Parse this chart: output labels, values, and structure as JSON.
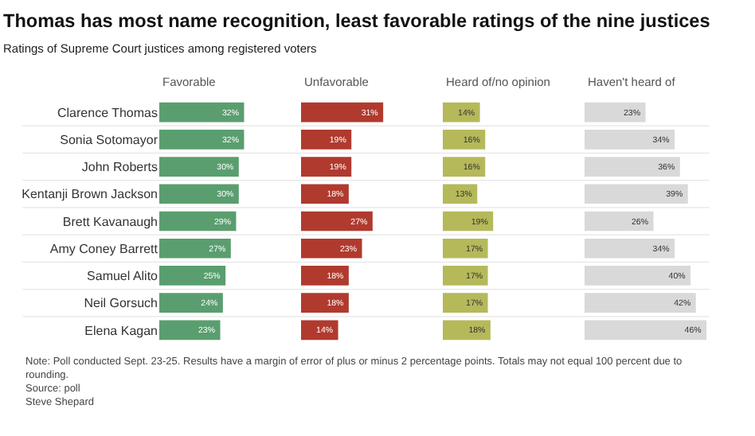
{
  "chart_data": [
    {
      "type": "bar",
      "orientation": "horizontal",
      "title": "Thomas has most name recognition, least favorable ratings of the nine justices",
      "subtitle": "Ratings of Supreme Court justices among registered voters",
      "categories": [
        "Clarence Thomas",
        "Sonia Sotomayor",
        "John Roberts",
        "Kentanji Brown Jackson",
        "Brett Kavanaugh",
        "Amy Coney Barrett",
        "Samuel Alito",
        "Neil Gorsuch",
        "Elena Kagan"
      ],
      "series": [
        {
          "name": "Favorable",
          "color": "#5a9e6f",
          "values": [
            32,
            32,
            30,
            30,
            29,
            27,
            25,
            24,
            23
          ],
          "value_labels": [
            "32%",
            "32%",
            "30%",
            "30%",
            "29%",
            "27%",
            "25%",
            "24%",
            "23%"
          ]
        }
      ],
      "tick_labels": "y",
      "grid": false
    },
    {
      "type": "bar",
      "orientation": "horizontal",
      "categories": [
        null,
        null,
        null,
        null,
        null,
        null,
        null,
        null,
        null
      ],
      "series": [
        {
          "name": "Unfavorable",
          "color": "#b03a2e",
          "values": [
            31,
            19,
            19,
            18,
            27,
            23,
            18,
            18,
            14
          ],
          "value_labels": [
            "31%",
            "19%",
            "19%",
            "18%",
            "27%",
            "23%",
            "18%",
            "18%",
            "14%"
          ]
        }
      ],
      "tick_labels": false,
      "grid": false
    },
    {
      "type": "bar",
      "orientation": "horizontal",
      "categories": [
        null,
        null,
        null,
        null,
        null,
        null,
        null,
        null,
        null
      ],
      "series": [
        {
          "name": "Heard of/no opinion",
          "color": "#b5b95a",
          "values": [
            14,
            16,
            16,
            13,
            19,
            17,
            17,
            17,
            18
          ],
          "value_labels": [
            "14%",
            "16%",
            "16%",
            "13%",
            "19%",
            "17%",
            "17%",
            "17%",
            "18%"
          ]
        }
      ],
      "tick_labels": false,
      "grid": false
    },
    {
      "type": "bar",
      "orientation": "horizontal",
      "categories": [
        null,
        null,
        null,
        null,
        null,
        null,
        null,
        null,
        null
      ],
      "series": [
        {
          "name": "Haven't heard of",
          "color": "#d9d9d9",
          "values": [
            23,
            34,
            36,
            39,
            26,
            34,
            40,
            42,
            46
          ],
          "value_labels": [
            "23%",
            "34%",
            "36%",
            "39%",
            "26%",
            "34%",
            "40%",
            "42%",
            "46%"
          ]
        }
      ],
      "tick_labels": false,
      "grid": false,
      "annotations": [
        "Note: Poll conducted Sept. 23-25. Results have a margin of error of plus or minus 2 percentage points. Totals may not equal 100 percent due to rounding.",
        "Source: poll",
        "Steve Shepard"
      ]
    }
  ]
}
